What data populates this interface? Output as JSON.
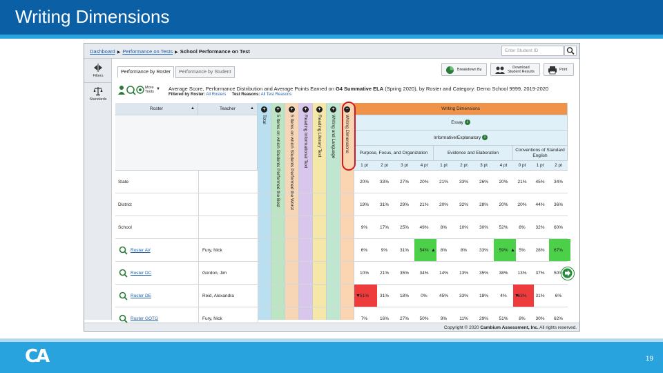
{
  "slide": {
    "title": "Writing Dimensions",
    "page_number": "19",
    "logo_text": "CA",
    "colors": {
      "header": "#0b5fa5",
      "footer": "#29a3dd"
    }
  },
  "app": {
    "breadcrumb": [
      "Dashboard",
      "Performance on Tests",
      "School Performance on Test"
    ],
    "student_search_placeholder": "Enter Student ID",
    "sidebar": [
      {
        "label": "Filters",
        "icon": "filter-arrows-icon"
      },
      {
        "label": "Standards",
        "icon": "scale-icon"
      }
    ],
    "tabs": [
      {
        "label": "Performance by Roster",
        "active": true
      },
      {
        "label": "Performance by Student",
        "active": false
      }
    ],
    "buttons": {
      "breakdown": "Breakdown By",
      "download_line1": "Download",
      "download_line2": "Student Results",
      "print": "Print",
      "more_tools_line1": "More",
      "more_tools_line2": "Tools"
    },
    "report": {
      "title_prefix": "Average Score, Performance Distribution and Average Points Earned on",
      "test_name": "G4 Summative ELA",
      "title_suffix": "(Spring 2020), by Roster and Category: Demo School 9999, 2019-2020",
      "filtered_by_label": "Filtered by Roster:",
      "filtered_by_value": "All Rosters",
      "test_reasons_label": "Test Reasons:",
      "test_reasons_value": "All Test Reasons"
    },
    "columns": {
      "roster": "Roster",
      "teacher": "Teacher",
      "strips": [
        {
          "label": "Total",
          "color": "#b9dff0"
        },
        {
          "label": "5 Items on which Students Performed the Best",
          "color": "#bde5c4"
        },
        {
          "label": "5 Items on which Students Performed the Worst",
          "color": "#f7d6b6"
        },
        {
          "label": "Reading Informational Text",
          "color": "#d9c6ec"
        },
        {
          "label": "Reading Literary Text",
          "color": "#f5e7a8"
        },
        {
          "label": "Writing and Language",
          "color": "#bfe6cf"
        },
        {
          "label": "Writing Dimensions",
          "color": "#fbd5b2"
        }
      ],
      "writing_dimensions": "Writing Dimensions",
      "essay": "Essay",
      "informative": "Informative/Explanatory",
      "groups": [
        {
          "label": "Purpose, Focus, and Organization",
          "points": [
            "1 pt",
            "2 pt",
            "3 pt",
            "4 pt"
          ]
        },
        {
          "label": "Evidence and Elaboration",
          "points": [
            "1 pt",
            "2 pt",
            "3 pt",
            "4 pt"
          ]
        },
        {
          "label_line1": "Conventions of Standard",
          "label_line2": "English",
          "points": [
            "0 pt",
            "1 pt",
            "2 pt"
          ]
        }
      ]
    },
    "rows": [
      {
        "roster": "State",
        "teacher": "",
        "link": false,
        "values": [
          "20%",
          "33%",
          "27%",
          "20%",
          "21%",
          "33%",
          "26%",
          "20%",
          "21%",
          "45%",
          "34%"
        ]
      },
      {
        "roster": "District",
        "teacher": "",
        "link": false,
        "values": [
          "19%",
          "31%",
          "29%",
          "21%",
          "20%",
          "32%",
          "28%",
          "20%",
          "20%",
          "44%",
          "36%"
        ]
      },
      {
        "roster": "School",
        "teacher": "",
        "link": false,
        "values": [
          "9%",
          "17%",
          "25%",
          "49%",
          "8%",
          "10%",
          "30%",
          "52%",
          "8%",
          "32%",
          "60%"
        ]
      },
      {
        "roster": "Roster AV",
        "teacher": "Fury, Nick",
        "link": true,
        "values": [
          "6%",
          "9%",
          "31%",
          "54%",
          "8%",
          "8%",
          "33%",
          "59%",
          "5%",
          "28%",
          "67%"
        ]
      },
      {
        "roster": "Roster DC",
        "teacher": "Gordon, Jim",
        "link": true,
        "values": [
          "10%",
          "21%",
          "35%",
          "34%",
          "14%",
          "13%",
          "35%",
          "38%",
          "13%",
          "37%",
          "50%"
        ]
      },
      {
        "roster": "Roster DE",
        "teacher": "Reid, Alexandra",
        "link": true,
        "values": [
          "51%",
          "31%",
          "18%",
          "0%",
          "45%",
          "33%",
          "18%",
          "4%",
          "63%",
          "31%",
          "6%"
        ]
      },
      {
        "roster": "Roster GOTG",
        "teacher": "Fury, Nick",
        "link": true,
        "values": [
          "7%",
          "16%",
          "27%",
          "50%",
          "9%",
          "11%",
          "29%",
          "51%",
          "8%",
          "30%",
          "62%"
        ]
      }
    ],
    "highlights": {
      "green": "#4cd04a",
      "red": "#ee3b3b"
    },
    "copyright_prefix": "Copyright © 2020",
    "copyright_company": "Cambium Assessment, Inc.",
    "copyright_suffix": "All rights reserved."
  }
}
